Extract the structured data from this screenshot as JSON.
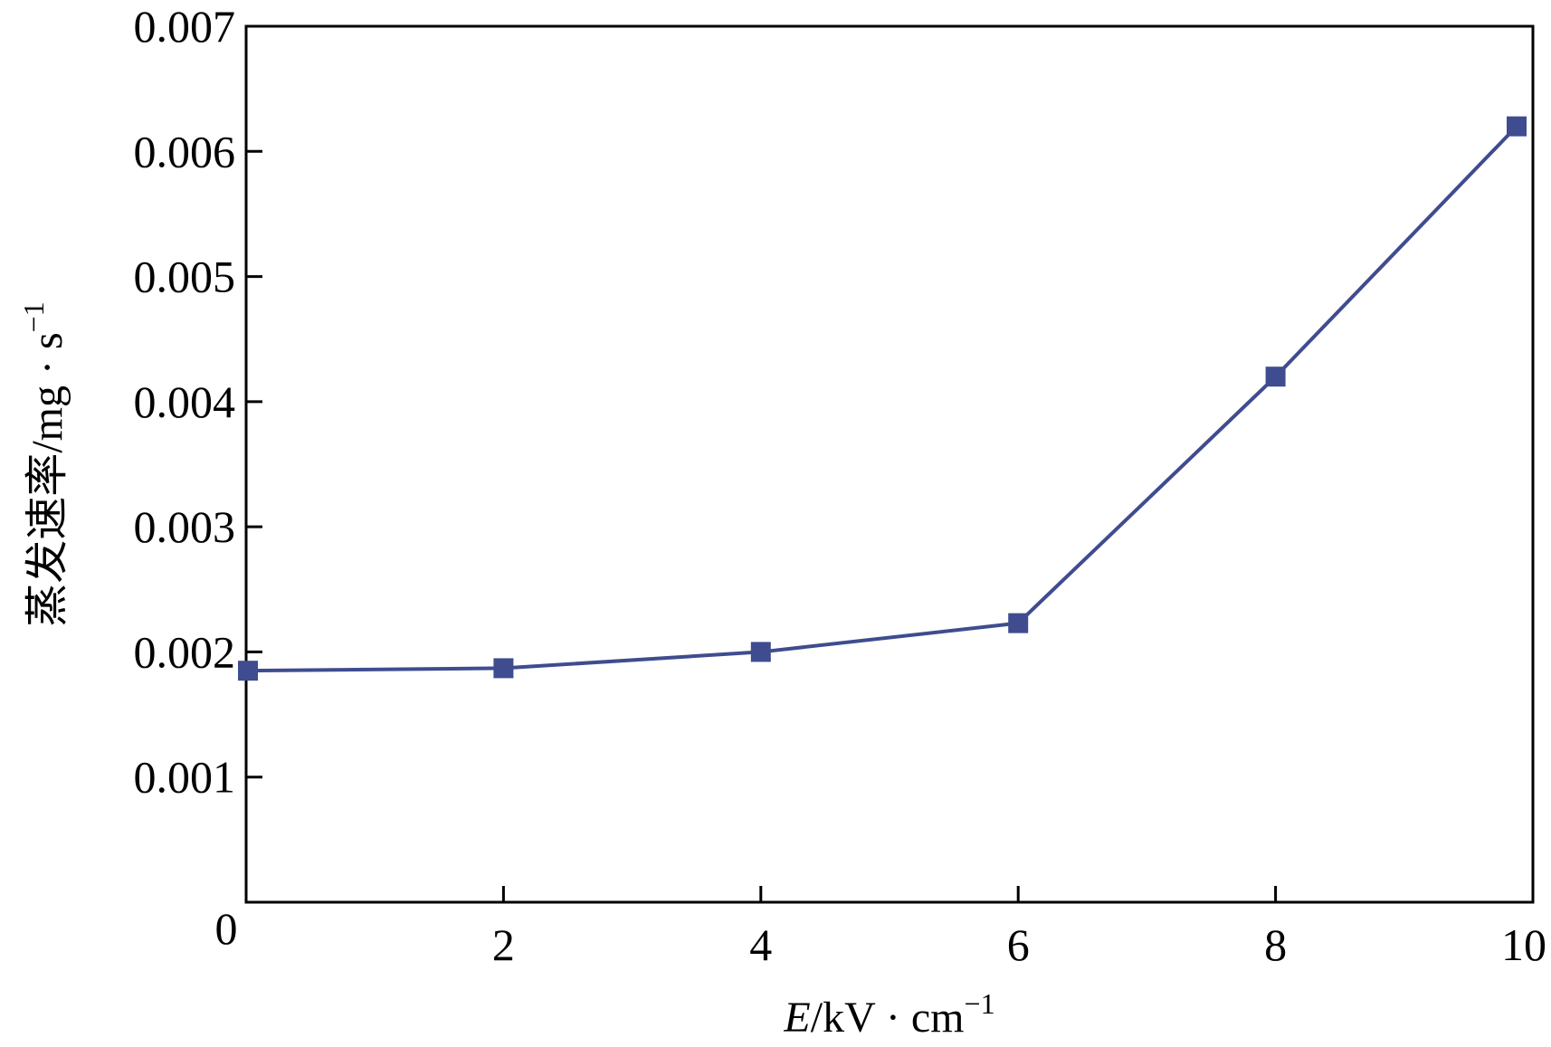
{
  "chart_data": {
    "type": "line",
    "xlabel": "E/kV · cm⁻¹",
    "xlabel_parts": {
      "var": "E",
      "unit": "/kV · cm",
      "sup": "−1"
    },
    "ylabel": "蒸发速率/mg · s⁻¹",
    "ylabel_parts": {
      "text": "蒸发速率/mg · s",
      "sup": "−1"
    },
    "xlim": [
      0,
      10
    ],
    "ylim": [
      0,
      0.007
    ],
    "x_ticks": [
      "0",
      "2",
      "4",
      "6",
      "8",
      "10"
    ],
    "x_tick_values": [
      0,
      2,
      4,
      6,
      8,
      10
    ],
    "y_ticks": [
      "0.001",
      "0.002",
      "0.003",
      "0.004",
      "0.005",
      "0.006",
      "0.007"
    ],
    "y_tick_values": [
      0.001,
      0.002,
      0.003,
      0.004,
      0.005,
      0.006,
      0.007
    ],
    "grid": false,
    "series": [
      {
        "color": "#3f4c8f",
        "marker": "square",
        "x": [
          0,
          2,
          4,
          6,
          8,
          10
        ],
        "y": [
          0.00185,
          0.00187,
          0.002,
          0.00223,
          0.0042,
          0.0062
        ]
      }
    ]
  }
}
